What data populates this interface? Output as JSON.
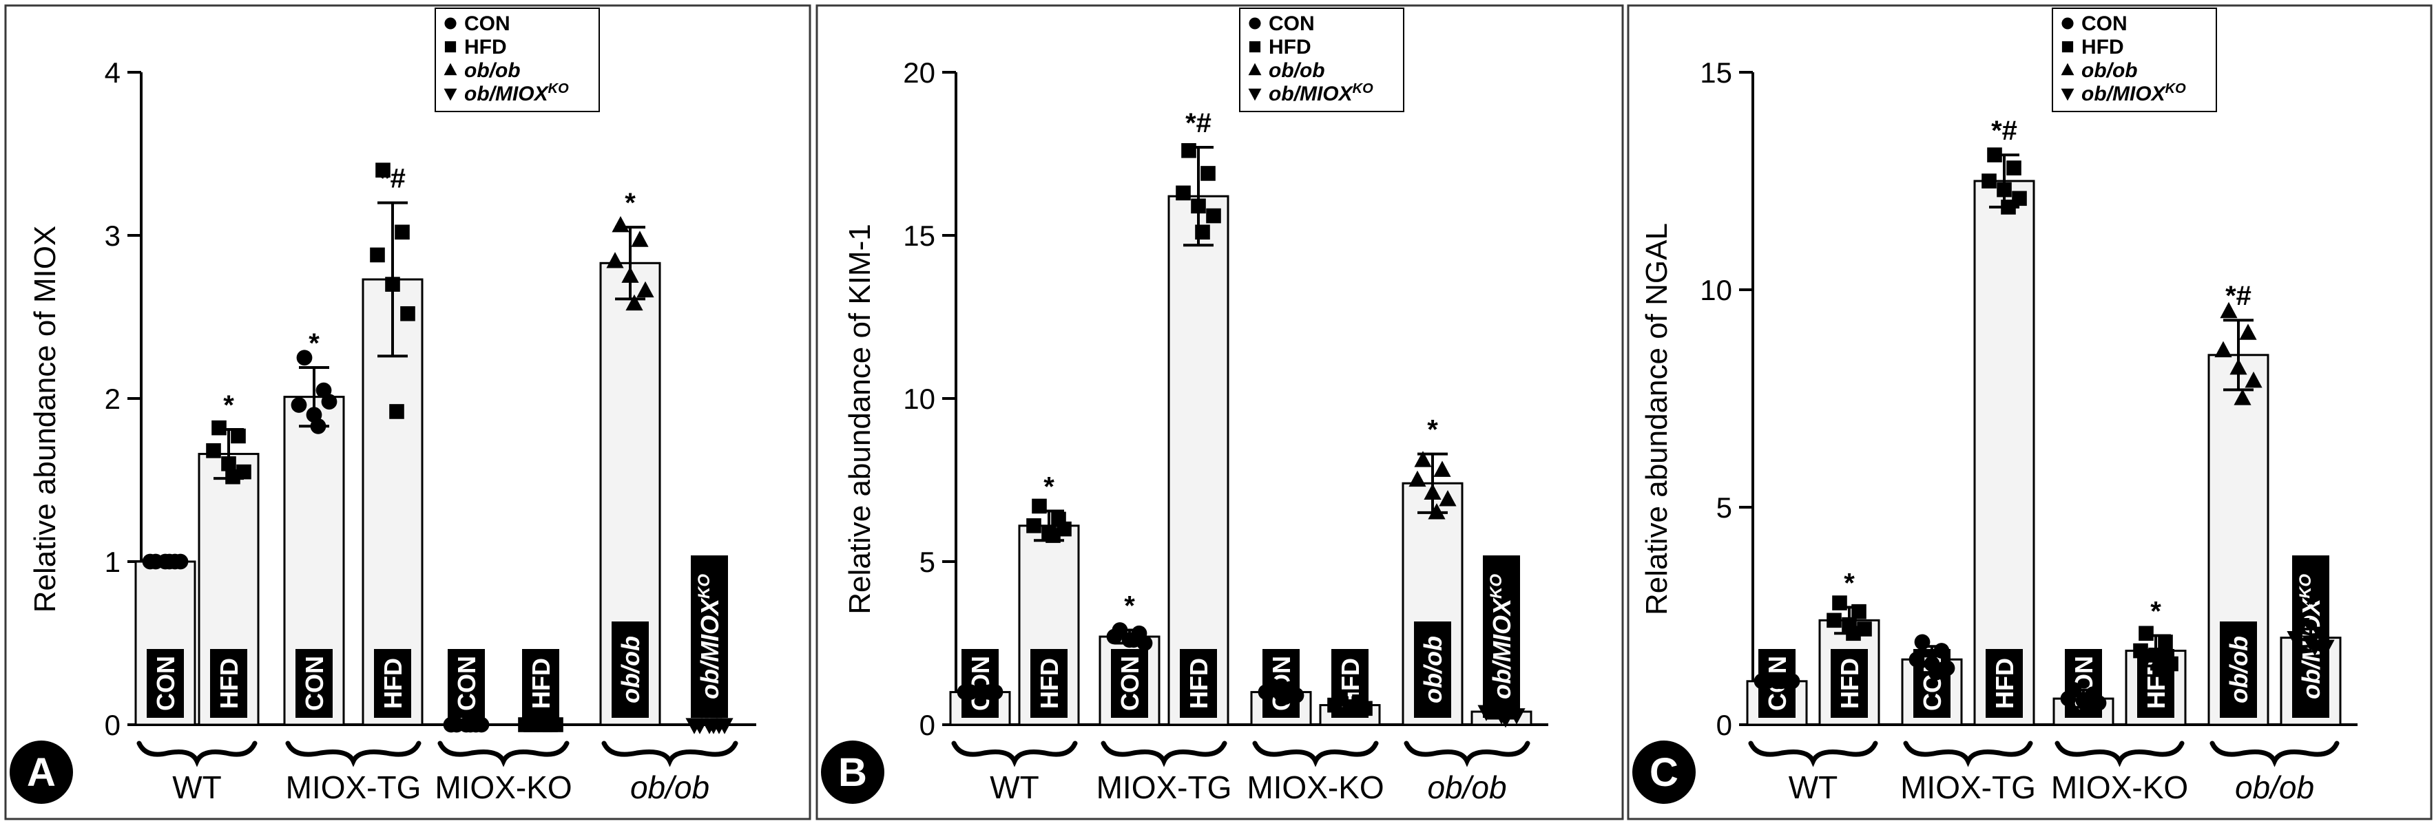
{
  "colors": {
    "background": "#ffffff",
    "ink": "#000000",
    "bar_fill": "#f3f3f3"
  },
  "legend": {
    "entries": [
      {
        "marker": "circle",
        "label": "CON",
        "italic": false
      },
      {
        "marker": "square",
        "label": "HFD",
        "italic": false
      },
      {
        "marker": "triangle-up",
        "label": "ob/ob",
        "italic": true
      },
      {
        "marker": "triangle-down",
        "label": "ob/MIOX",
        "sup": "KO",
        "italic": true
      }
    ]
  },
  "chart_data": [
    {
      "panel_label": "A",
      "type": "bar",
      "ylabel": "Relative abundance of MIOX",
      "ylim": [
        0,
        4
      ],
      "yticks": [
        0,
        1,
        2,
        3,
        4
      ],
      "groups": [
        {
          "name": "WT",
          "italic": false,
          "bars": [
            {
              "label": "CON",
              "marker": "circle"
            },
            {
              "label": "HFD",
              "marker": "square"
            }
          ]
        },
        {
          "name": "MIOX-TG",
          "italic": false,
          "bars": [
            {
              "label": "CON",
              "marker": "circle"
            },
            {
              "label": "HFD",
              "marker": "square"
            }
          ]
        },
        {
          "name": "MIOX-KO",
          "italic": false,
          "bars": [
            {
              "label": "CON",
              "marker": "circle"
            },
            {
              "label": "HFD",
              "marker": "square"
            }
          ]
        },
        {
          "name": "ob/ob",
          "italic": true,
          "bars": [
            {
              "label": "ob/ob",
              "marker": "triangle-up"
            },
            {
              "label": "ob/MIOX",
              "sup": "KO",
              "marker": "triangle-down"
            }
          ]
        }
      ],
      "bars": [
        {
          "value": 1.0,
          "sd": 0.0,
          "points": [
            1,
            1,
            1,
            1,
            1,
            1
          ],
          "sig": ""
        },
        {
          "value": 1.66,
          "sd": 0.15,
          "points": [
            1.82,
            1.77,
            1.68,
            1.6,
            1.55,
            1.52
          ],
          "sig": "*"
        },
        {
          "value": 2.01,
          "sd": 0.18,
          "points": [
            2.25,
            2.05,
            1.96,
            1.9,
            1.98,
            1.83
          ],
          "sig": "*"
        },
        {
          "value": 2.73,
          "sd": 0.47,
          "points": [
            3.4,
            3.02,
            2.88,
            2.7,
            2.52,
            1.92
          ],
          "sig": "*#"
        },
        {
          "value": 0.0,
          "sd": 0.0,
          "points": [
            0,
            0,
            0,
            0,
            0,
            0
          ],
          "sig": ""
        },
        {
          "value": 0.0,
          "sd": 0.0,
          "points": [
            0,
            0,
            0,
            0,
            0,
            0
          ],
          "sig": ""
        },
        {
          "value": 2.83,
          "sd": 0.22,
          "points": [
            3.06,
            2.97,
            2.84,
            2.75,
            2.66,
            2.58
          ],
          "sig": "*"
        },
        {
          "value": 0.0,
          "sd": 0.0,
          "points": [
            0,
            0,
            0,
            0,
            0,
            0
          ],
          "sig": ""
        }
      ]
    },
    {
      "panel_label": "B",
      "type": "bar",
      "ylabel": "Relative abundance of KIM-1",
      "ylim": [
        0,
        20
      ],
      "yticks": [
        0,
        5,
        10,
        15,
        20
      ],
      "groups": [
        {
          "name": "WT",
          "italic": false,
          "bars": [
            {
              "label": "CON",
              "marker": "circle"
            },
            {
              "label": "HFD",
              "marker": "square"
            }
          ]
        },
        {
          "name": "MIOX-TG",
          "italic": false,
          "bars": [
            {
              "label": "CON",
              "marker": "circle"
            },
            {
              "label": "HFD",
              "marker": "square"
            }
          ]
        },
        {
          "name": "MIOX-KO",
          "italic": false,
          "bars": [
            {
              "label": "CON",
              "marker": "circle"
            },
            {
              "label": "HFD",
              "marker": "square"
            }
          ]
        },
        {
          "name": "ob/ob",
          "italic": true,
          "bars": [
            {
              "label": "ob/ob",
              "marker": "triangle-up"
            },
            {
              "label": "ob/MIOX",
              "sup": "KO",
              "marker": "triangle-down"
            }
          ]
        }
      ],
      "bars": [
        {
          "value": 1.0,
          "sd": 0.05,
          "points": [
            1,
            1,
            1,
            1,
            1,
            1
          ],
          "sig": ""
        },
        {
          "value": 6.1,
          "sd": 0.45,
          "points": [
            6.7,
            6.3,
            6.1,
            5.9,
            6.0,
            5.8
          ],
          "sig": "*"
        },
        {
          "value": 2.7,
          "sd": 0.2,
          "points": [
            2.9,
            2.8,
            2.7,
            2.6,
            2.5,
            2.6
          ],
          "sig": "*"
        },
        {
          "value": 16.2,
          "sd": 1.5,
          "points": [
            17.6,
            16.9,
            16.3,
            15.9,
            15.6,
            15.1
          ],
          "sig": "*#"
        },
        {
          "value": 1.0,
          "sd": 0.12,
          "points": [
            1.2,
            1.1,
            1.0,
            0.95,
            0.9,
            0.85
          ],
          "sig": ""
        },
        {
          "value": 0.6,
          "sd": 0.12,
          "points": [
            0.8,
            0.7,
            0.6,
            0.55,
            0.5,
            0.45
          ],
          "sig": ""
        },
        {
          "value": 7.4,
          "sd": 0.9,
          "points": [
            8.1,
            7.8,
            7.5,
            7.1,
            6.9,
            6.5
          ],
          "sig": "*"
        },
        {
          "value": 0.4,
          "sd": 0.2,
          "points": [
            0.6,
            0.5,
            0.4,
            0.3,
            0.3,
            0.2
          ],
          "sig": ""
        }
      ]
    },
    {
      "panel_label": "C",
      "type": "bar",
      "ylabel": "Relative abundance of NGAL",
      "ylim": [
        0,
        15
      ],
      "yticks": [
        0,
        5,
        10,
        15
      ],
      "groups": [
        {
          "name": "WT",
          "italic": false,
          "bars": [
            {
              "label": "CON",
              "marker": "circle"
            },
            {
              "label": "HFD",
              "marker": "square"
            }
          ]
        },
        {
          "name": "MIOX-TG",
          "italic": false,
          "bars": [
            {
              "label": "CON",
              "marker": "circle"
            },
            {
              "label": "HFD",
              "marker": "square"
            }
          ]
        },
        {
          "name": "MIOX-KO",
          "italic": false,
          "bars": [
            {
              "label": "CON",
              "marker": "circle"
            },
            {
              "label": "HFD",
              "marker": "square"
            }
          ]
        },
        {
          "name": "ob/ob",
          "italic": true,
          "bars": [
            {
              "label": "ob/ob",
              "marker": "triangle-up"
            },
            {
              "label": "ob/MIOX",
              "sup": "KO",
              "marker": "triangle-down"
            }
          ]
        }
      ],
      "bars": [
        {
          "value": 1.0,
          "sd": 0.03,
          "points": [
            1,
            1,
            1,
            1,
            1,
            1
          ],
          "sig": ""
        },
        {
          "value": 2.4,
          "sd": 0.3,
          "points": [
            2.8,
            2.6,
            2.4,
            2.3,
            2.2,
            2.1
          ],
          "sig": "*"
        },
        {
          "value": 1.5,
          "sd": 0.3,
          "points": [
            1.9,
            1.7,
            1.5,
            1.4,
            1.3,
            1.2
          ],
          "sig": ""
        },
        {
          "value": 12.5,
          "sd": 0.6,
          "points": [
            13.1,
            12.8,
            12.5,
            12.3,
            12.1,
            11.9
          ],
          "sig": "*#"
        },
        {
          "value": 0.6,
          "sd": 0.2,
          "points": [
            0.8,
            0.7,
            0.6,
            0.55,
            0.5,
            0.4
          ],
          "sig": ""
        },
        {
          "value": 1.7,
          "sd": 0.35,
          "points": [
            2.1,
            1.9,
            1.7,
            1.6,
            1.4,
            1.3
          ],
          "sig": "*"
        },
        {
          "value": 8.5,
          "sd": 0.8,
          "points": [
            9.5,
            9.0,
            8.6,
            8.2,
            7.9,
            7.5
          ],
          "sig": "*#"
        },
        {
          "value": 2.0,
          "sd": 0.2,
          "points": [
            2.3,
            2.1,
            2.0,
            1.9,
            1.8,
            1.8
          ],
          "sig": "*"
        }
      ]
    }
  ]
}
